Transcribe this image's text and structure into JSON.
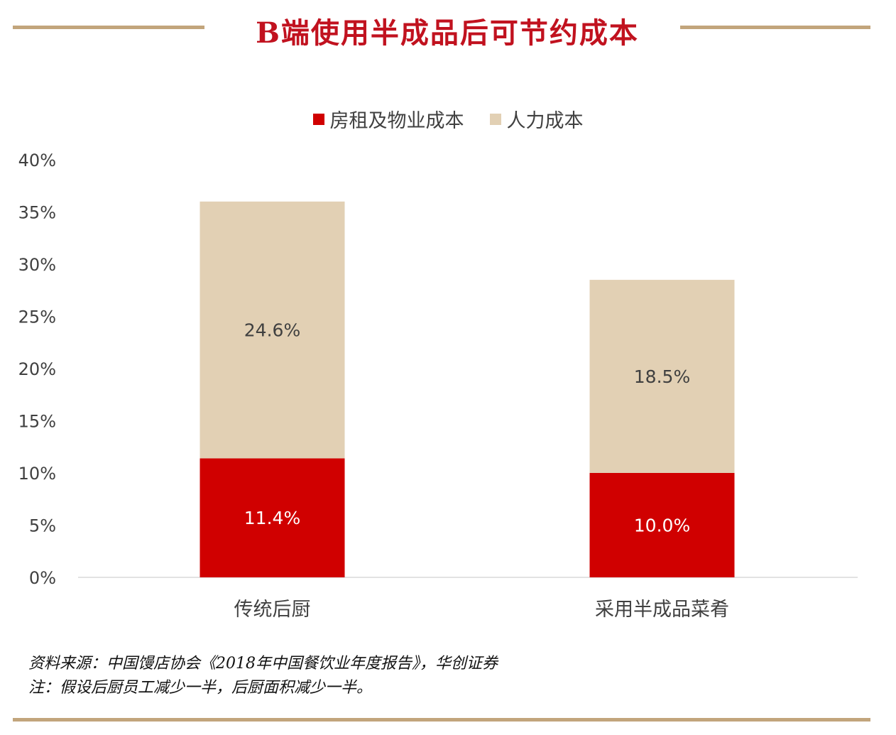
{
  "title": "B端使用半成品后可节约成本",
  "colors": {
    "series1": "#d00000",
    "series2": "#e2d0b4",
    "accent_rule": "#c2a57c",
    "title": "#c1121f"
  },
  "legend": [
    {
      "label": "房租及物业成本",
      "color": "#d00000"
    },
    {
      "label": "人力成本",
      "color": "#e2d0b4"
    }
  ],
  "chart_data": {
    "type": "bar",
    "stacked": true,
    "categories": [
      "传统后厨",
      "采用半成品菜肴"
    ],
    "series": [
      {
        "name": "房租及物业成本",
        "values": [
          11.4,
          10.0
        ],
        "labels": [
          "11.4%",
          "10.0%"
        ]
      },
      {
        "name": "人力成本",
        "values": [
          24.6,
          18.5
        ],
        "labels": [
          "24.6%",
          "18.5%"
        ]
      }
    ],
    "ylim": [
      0,
      40
    ],
    "yticks": [
      0,
      5,
      10,
      15,
      20,
      25,
      30,
      35,
      40
    ],
    "ytick_labels": [
      "0%",
      "5%",
      "10%",
      "15%",
      "20%",
      "25%",
      "30%",
      "35%",
      "40%"
    ],
    "xlabel": "",
    "ylabel": "",
    "grid": false,
    "legend_position": "top"
  },
  "source": {
    "line1": "资料来源：中国馒店协会《2018年中国餐饮业年度报告》，华创证券",
    "line2": "注：假设后厨员工减少一半，后厨面积减少一半。"
  }
}
